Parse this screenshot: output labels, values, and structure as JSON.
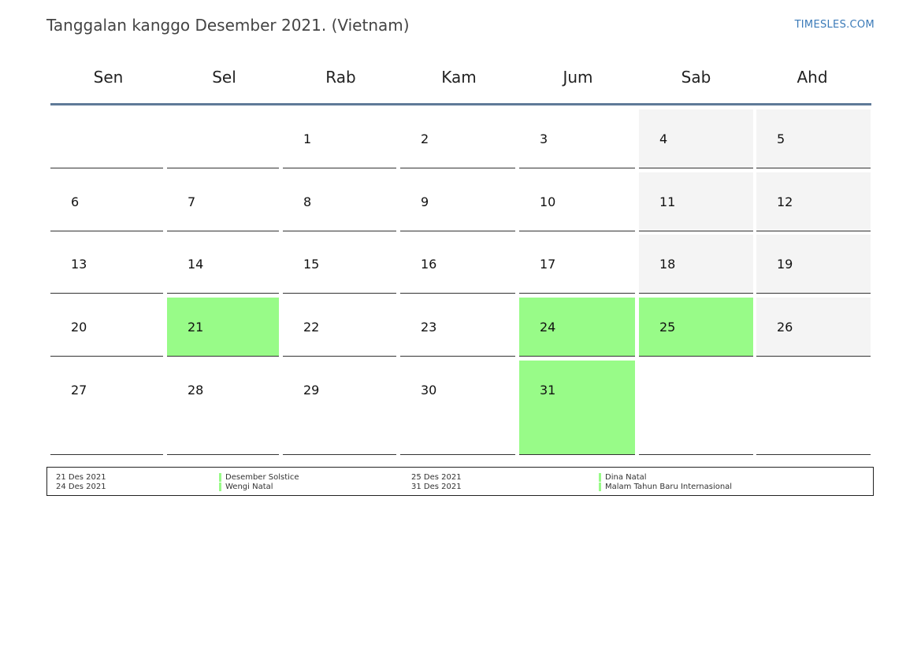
{
  "header": {
    "title": "Tanggalan kanggo Desember 2021. (Vietnam)",
    "brand": "TIMESLES.COM"
  },
  "weekdays": [
    "Sen",
    "Sel",
    "Rab",
    "Kam",
    "Jum",
    "Sab",
    "Ahd"
  ],
  "colors": {
    "holiday": "#98fb88",
    "weekend": "#f4f4f4",
    "header_line": "#5f7a98",
    "brand": "#3a7ab8"
  },
  "weeks": [
    [
      null,
      null,
      1,
      2,
      3,
      4,
      5
    ],
    [
      6,
      7,
      8,
      9,
      10,
      11,
      12
    ],
    [
      13,
      14,
      15,
      16,
      17,
      18,
      19
    ],
    [
      20,
      21,
      22,
      23,
      24,
      25,
      26
    ],
    [
      27,
      28,
      29,
      30,
      31,
      null,
      null
    ]
  ],
  "highlighted_days": [
    21,
    24,
    25,
    31
  ],
  "legend": {
    "left": [
      {
        "date": "21 Des 2021",
        "name": "Desember Solstice"
      },
      {
        "date": "24 Des 2021",
        "name": "Wengi Natal"
      }
    ],
    "right": [
      {
        "date": "25 Des 2021",
        "name": "Dina Natal"
      },
      {
        "date": "31 Des 2021",
        "name": "Malam Tahun Baru Internasional"
      }
    ]
  }
}
